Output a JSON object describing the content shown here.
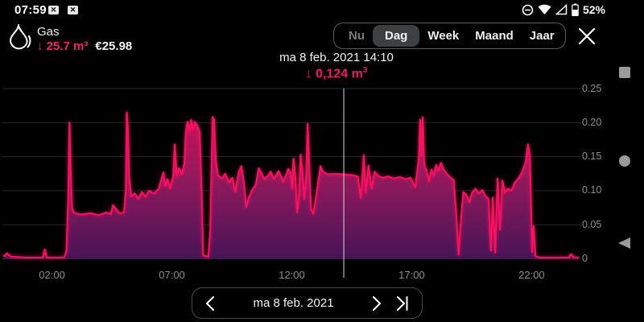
{
  "status_bar": {
    "time": "07:59",
    "battery": "52%",
    "left_icons": [
      "screenshot-icon",
      "screenshot-icon"
    ],
    "right_icons": [
      "do-not-disturb-icon",
      "wifi-icon",
      "signal-icon",
      "battery-icon"
    ]
  },
  "header": {
    "title": "Gas",
    "usage": "↓ 25.7 m³",
    "cost": "€25.98"
  },
  "tabs": {
    "items": [
      {
        "label": "Nu",
        "state": "dim"
      },
      {
        "label": "Dag",
        "state": "sel"
      },
      {
        "label": "Week",
        "state": ""
      },
      {
        "label": "Maand",
        "state": ""
      },
      {
        "label": "Jaar",
        "state": ""
      }
    ],
    "close_label": "close"
  },
  "cursor": {
    "datetime": "ma 8 feb. 2021 14:10",
    "value_prefix": "↓ 0,124 m",
    "value_sup": "3",
    "hour": 14.167
  },
  "date_nav": {
    "label": "ma 8 feb. 2021"
  },
  "chart_data": {
    "type": "area",
    "title": "Gas usage per day",
    "unit": "m3",
    "x_range": [
      0,
      24
    ],
    "y_range": [
      0,
      0.25
    ],
    "grid": true,
    "y_ticks": [
      {
        "v": 0.25,
        "label": "0.25"
      },
      {
        "v": 0.2,
        "label": "0.20"
      },
      {
        "v": 0.15,
        "label": "0.15"
      },
      {
        "v": 0.1,
        "label": "0.10"
      },
      {
        "v": 0.05,
        "label": "0.05"
      },
      {
        "v": 0,
        "label": "0"
      }
    ],
    "x_ticks": [
      {
        "h": 2,
        "label": "02:00"
      },
      {
        "h": 7,
        "label": "07:00"
      },
      {
        "h": 12,
        "label": "12:00"
      },
      {
        "h": 17,
        "label": "17:00"
      },
      {
        "h": 22,
        "label": "22:00"
      }
    ],
    "colors": {
      "line": "#f80f5f",
      "fill_top": "#e60e55",
      "fill_mid": "#96195c",
      "fill_bottom": "#471457",
      "grid": "#2b2b2b",
      "cursor_line": "#d8d8d8",
      "axis_text": "#8f8f8f",
      "accent": "#f2176b"
    },
    "series": [
      [
        0.0,
        0.004
      ],
      [
        0.12,
        0.008
      ],
      [
        0.3,
        0.003
      ],
      [
        0.9,
        0.002
      ],
      [
        1.62,
        0.002
      ],
      [
        1.7,
        0.014
      ],
      [
        1.78,
        0.002
      ],
      [
        2.5,
        0.002
      ],
      [
        2.6,
        0.01
      ],
      [
        2.68,
        0.09
      ],
      [
        2.73,
        0.2
      ],
      [
        2.78,
        0.13
      ],
      [
        2.84,
        0.075
      ],
      [
        2.9,
        0.068
      ],
      [
        3.2,
        0.065
      ],
      [
        3.6,
        0.067
      ],
      [
        3.95,
        0.064
      ],
      [
        4.25,
        0.068
      ],
      [
        4.45,
        0.066
      ],
      [
        4.55,
        0.079
      ],
      [
        4.65,
        0.074
      ],
      [
        4.8,
        0.067
      ],
      [
        5.0,
        0.068
      ],
      [
        5.08,
        0.1
      ],
      [
        5.12,
        0.215
      ],
      [
        5.17,
        0.19
      ],
      [
        5.22,
        0.12
      ],
      [
        5.3,
        0.092
      ],
      [
        5.45,
        0.096
      ],
      [
        5.6,
        0.088
      ],
      [
        5.75,
        0.098
      ],
      [
        5.9,
        0.091
      ],
      [
        6.05,
        0.1
      ],
      [
        6.25,
        0.096
      ],
      [
        6.45,
        0.103
      ],
      [
        6.65,
        0.127
      ],
      [
        6.72,
        0.107
      ],
      [
        6.82,
        0.117
      ],
      [
        6.92,
        0.103
      ],
      [
        7.05,
        0.12
      ],
      [
        7.12,
        0.168
      ],
      [
        7.2,
        0.122
      ],
      [
        7.3,
        0.133
      ],
      [
        7.42,
        0.124
      ],
      [
        7.52,
        0.14
      ],
      [
        7.58,
        0.186
      ],
      [
        7.65,
        0.201
      ],
      [
        7.73,
        0.188
      ],
      [
        7.8,
        0.204
      ],
      [
        7.88,
        0.19
      ],
      [
        7.96,
        0.201
      ],
      [
        8.06,
        0.196
      ],
      [
        8.16,
        0.186
      ],
      [
        8.24,
        0.1
      ],
      [
        8.3,
        0.005
      ],
      [
        8.52,
        0.003
      ],
      [
        8.6,
        0.04
      ],
      [
        8.66,
        0.15
      ],
      [
        8.7,
        0.208
      ],
      [
        8.76,
        0.204
      ],
      [
        8.83,
        0.145
      ],
      [
        8.92,
        0.123
      ],
      [
        9.08,
        0.118
      ],
      [
        9.22,
        0.125
      ],
      [
        9.38,
        0.112
      ],
      [
        9.52,
        0.119
      ],
      [
        9.64,
        0.098
      ],
      [
        9.78,
        0.127
      ],
      [
        9.9,
        0.136
      ],
      [
        10.0,
        0.113
      ],
      [
        10.1,
        0.076
      ],
      [
        10.2,
        0.089
      ],
      [
        10.35,
        0.101
      ],
      [
        10.5,
        0.109
      ],
      [
        10.62,
        0.133
      ],
      [
        10.72,
        0.127
      ],
      [
        10.85,
        0.117
      ],
      [
        11.0,
        0.122
      ],
      [
        11.12,
        0.128
      ],
      [
        11.25,
        0.117
      ],
      [
        11.35,
        0.123
      ],
      [
        11.45,
        0.129
      ],
      [
        11.55,
        0.121
      ],
      [
        11.65,
        0.113
      ],
      [
        11.75,
        0.122
      ],
      [
        11.85,
        0.132
      ],
      [
        11.95,
        0.126
      ],
      [
        12.02,
        0.103
      ],
      [
        12.07,
        0.147
      ],
      [
        12.15,
        0.12
      ],
      [
        12.22,
        0.068
      ],
      [
        12.3,
        0.093
      ],
      [
        12.37,
        0.153
      ],
      [
        12.44,
        0.13
      ],
      [
        12.52,
        0.088
      ],
      [
        12.6,
        0.122
      ],
      [
        12.66,
        0.198
      ],
      [
        12.72,
        0.142
      ],
      [
        12.8,
        0.073
      ],
      [
        12.9,
        0.066
      ],
      [
        13.02,
        0.093
      ],
      [
        13.12,
        0.118
      ],
      [
        13.2,
        0.136
      ],
      [
        13.3,
        0.128
      ],
      [
        13.5,
        0.124
      ],
      [
        13.8,
        0.125
      ],
      [
        14.17,
        0.124
      ],
      [
        14.5,
        0.123
      ],
      [
        14.75,
        0.121
      ],
      [
        14.88,
        0.089
      ],
      [
        15.0,
        0.152
      ],
      [
        15.08,
        0.097
      ],
      [
        15.2,
        0.137
      ],
      [
        15.33,
        0.103
      ],
      [
        15.45,
        0.128
      ],
      [
        15.6,
        0.122
      ],
      [
        15.8,
        0.119
      ],
      [
        16.0,
        0.121
      ],
      [
        16.25,
        0.118
      ],
      [
        16.5,
        0.12
      ],
      [
        16.75,
        0.117
      ],
      [
        16.95,
        0.119
      ],
      [
        17.15,
        0.105
      ],
      [
        17.3,
        0.15
      ],
      [
        17.35,
        0.204
      ],
      [
        17.4,
        0.152
      ],
      [
        17.46,
        0.208
      ],
      [
        17.52,
        0.14
      ],
      [
        17.62,
        0.129
      ],
      [
        17.72,
        0.114
      ],
      [
        17.82,
        0.131
      ],
      [
        17.92,
        0.122
      ],
      [
        18.02,
        0.138
      ],
      [
        18.12,
        0.13
      ],
      [
        18.22,
        0.141
      ],
      [
        18.33,
        0.131
      ],
      [
        18.48,
        0.124
      ],
      [
        18.62,
        0.119
      ],
      [
        18.75,
        0.116
      ],
      [
        18.85,
        0.07
      ],
      [
        18.95,
        0.006
      ],
      [
        19.05,
        0.055
      ],
      [
        19.15,
        0.098
      ],
      [
        19.28,
        0.094
      ],
      [
        19.4,
        0.083
      ],
      [
        19.52,
        0.097
      ],
      [
        19.65,
        0.103
      ],
      [
        19.8,
        0.096
      ],
      [
        19.95,
        0.101
      ],
      [
        20.08,
        0.092
      ],
      [
        20.2,
        0.088
      ],
      [
        20.3,
        0.012
      ],
      [
        20.38,
        0.09
      ],
      [
        20.48,
        0.009
      ],
      [
        20.58,
        0.118
      ],
      [
        20.68,
        0.043
      ],
      [
        20.78,
        0.115
      ],
      [
        20.88,
        0.097
      ],
      [
        21.0,
        0.103
      ],
      [
        21.15,
        0.1
      ],
      [
        21.3,
        0.112
      ],
      [
        21.45,
        0.118
      ],
      [
        21.6,
        0.127
      ],
      [
        21.75,
        0.142
      ],
      [
        21.85,
        0.168
      ],
      [
        21.93,
        0.15
      ],
      [
        22.02,
        0.01
      ],
      [
        22.08,
        0.048
      ],
      [
        22.16,
        0.004
      ],
      [
        22.3,
        0.002
      ],
      [
        23.3,
        0.002
      ],
      [
        23.55,
        0.002
      ],
      [
        23.65,
        0.007
      ],
      [
        23.75,
        0.002
      ],
      [
        23.95,
        0.002
      ]
    ]
  }
}
